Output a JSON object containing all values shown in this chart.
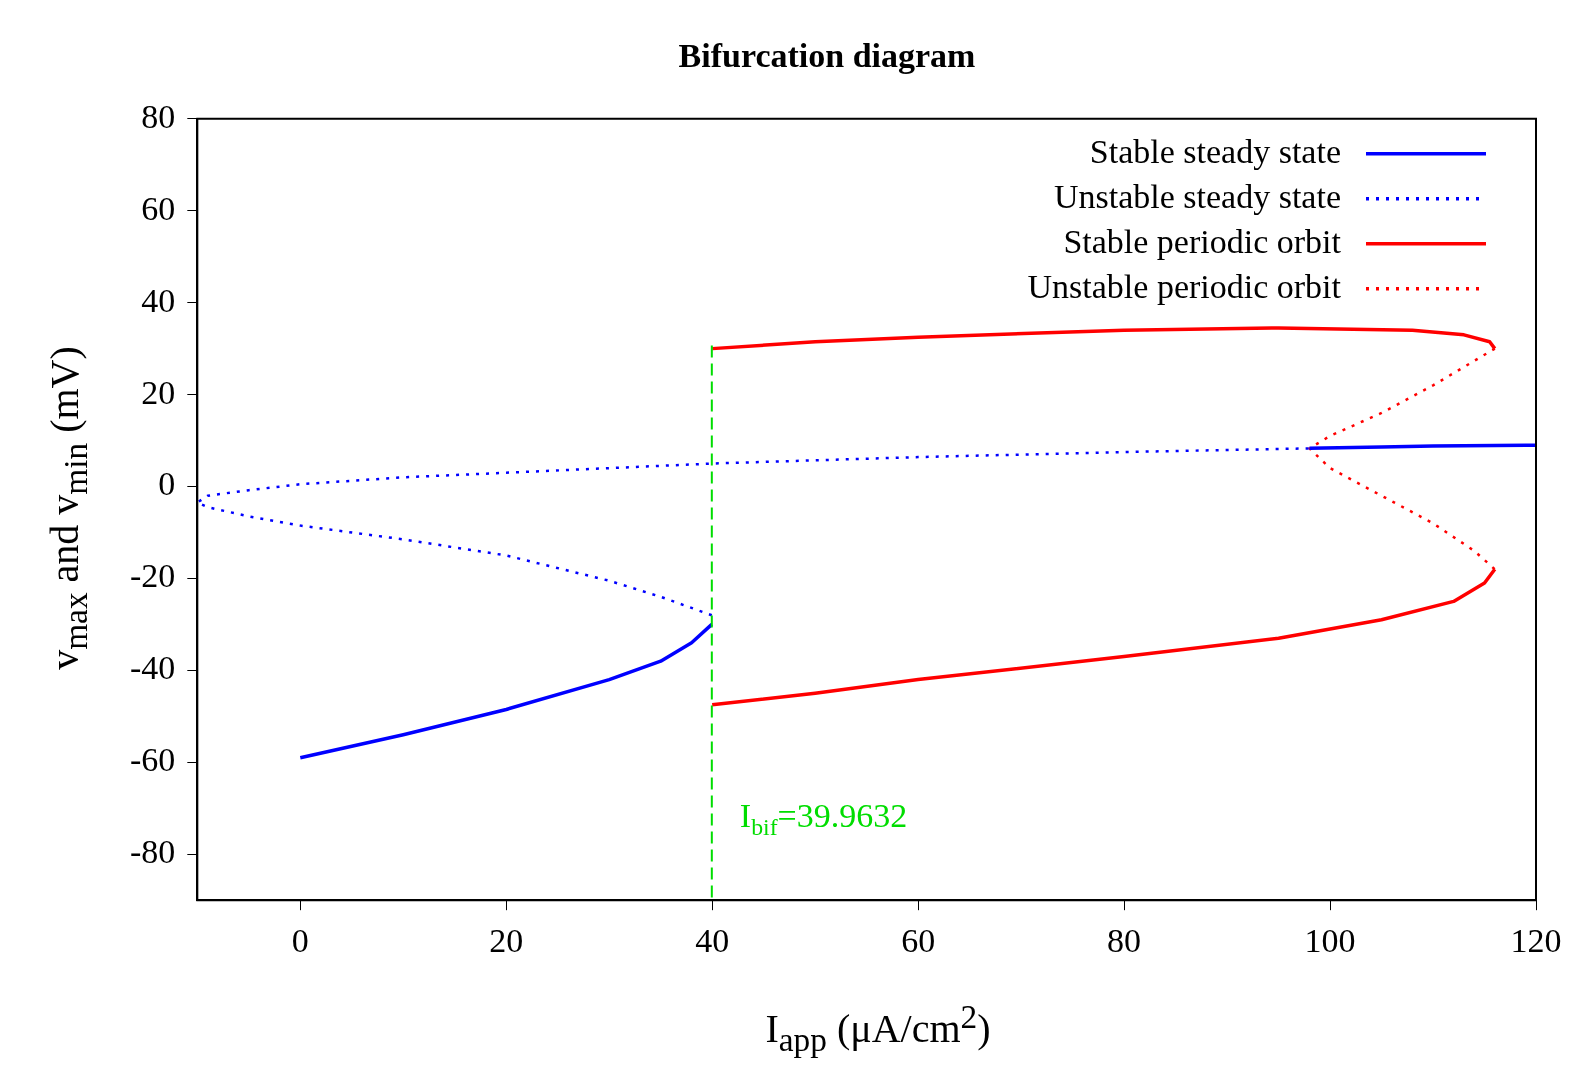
{
  "chart_data": {
    "type": "line",
    "title": "Bifurcation diagram",
    "xlabel": "I$_{app}$ (μA/cm$^{2}$)",
    "ylabel": "v$_{max}$ and v$_{min}$ (mV)",
    "xlim": [
      -10,
      120
    ],
    "xticks": [
      0,
      20,
      40,
      60,
      80,
      100,
      120
    ],
    "ylim": [
      -90,
      80
    ],
    "yticks": [
      -80,
      -60,
      -40,
      -20,
      0,
      20,
      40,
      60,
      80
    ],
    "grid": false,
    "legend": "top right",
    "marker": "none",
    "series": [
      {
        "name": "Stable steady state",
        "color": "#0000ff",
        "line_style": "solid",
        "x": [
          0,
          10,
          20,
          30,
          35,
          38,
          39.96,
          null,
          98,
          105,
          110,
          120
        ],
        "values": [
          -59,
          -54,
          -48.5,
          -42,
          -38,
          -34,
          -30,
          null,
          8.3,
          8.6,
          8.8,
          9
        ]
      },
      {
        "name": "Unstable steady state",
        "color": "#0000ff",
        "line_style": "dotted",
        "x": [
          39.96,
          35,
          30,
          20,
          10,
          0,
          -5,
          -9,
          -10,
          -9,
          -5,
          0,
          10,
          20,
          40,
          60,
          80,
          98
        ],
        "values": [
          -28,
          -24,
          -20.5,
          -15,
          -11.5,
          -8.5,
          -6.5,
          -4.5,
          -3.5,
          -2,
          -0.8,
          0.5,
          2,
          3,
          5,
          6.4,
          7.5,
          8.3
        ]
      },
      {
        "name": "Stable periodic orbit",
        "color": "#ff0000",
        "line_style": "solid",
        "x": [
          40,
          50,
          60,
          80,
          95,
          108,
          113,
          115.5,
          116,
          null,
          116,
          115,
          112,
          105,
          95,
          80,
          60,
          50,
          40
        ],
        "values": [
          30,
          31.5,
          32.5,
          34,
          34.5,
          34,
          33,
          31.5,
          30,
          null,
          -18,
          -21,
          -25,
          -29,
          -33,
          -37,
          -42,
          -45,
          -47.5
        ]
      },
      {
        "name": "Unstable periodic orbit",
        "color": "#ff0000",
        "line_style": "dotted",
        "x": [
          116,
          110,
          105,
          100,
          98,
          100,
          105,
          110,
          114,
          116
        ],
        "values": [
          30,
          22,
          16,
          11,
          8.3,
          4,
          -2,
          -8,
          -14,
          -18
        ]
      }
    ],
    "ref_lines": [
      {
        "axis": "x",
        "value": 39.9632,
        "label": "I$_{bif}$=39.9632",
        "color": "#00dd00",
        "line_style": "dashed"
      }
    ]
  }
}
